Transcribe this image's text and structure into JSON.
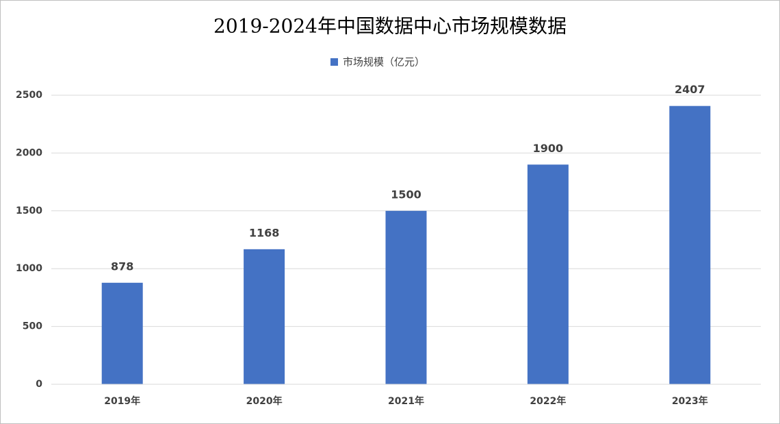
{
  "chart_data": {
    "type": "bar",
    "title": "2019-2024年中国数据中心市场规模数据",
    "categories": [
      "2019年",
      "2020年",
      "2021年",
      "2022年",
      "2023年"
    ],
    "series": [
      {
        "name": "市场规模（亿元）",
        "color": "#4472c4",
        "values": [
          878,
          1168,
          1500,
          1900,
          2407
        ]
      }
    ],
    "ylim": [
      0,
      2500
    ],
    "yticks": [
      0,
      500,
      1000,
      1500,
      2000,
      2500
    ],
    "grid": true,
    "legend": "top"
  }
}
